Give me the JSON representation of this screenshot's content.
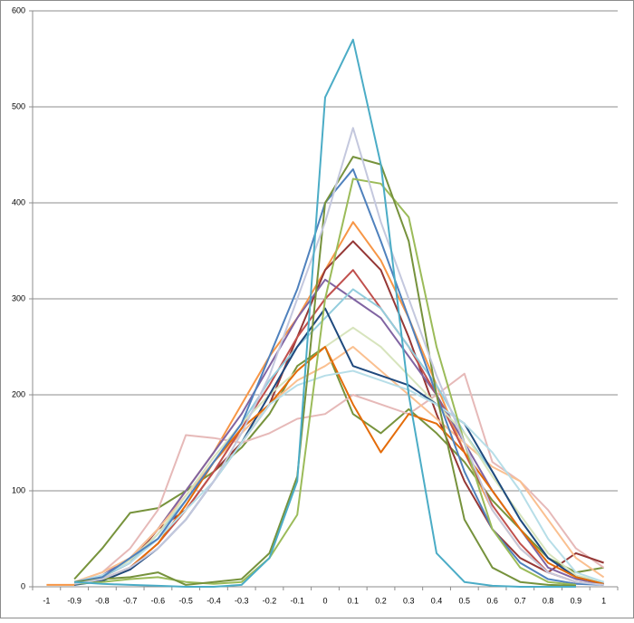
{
  "chart_data": {
    "type": "line",
    "categories": [
      "-1",
      "-0.9",
      "-0.8",
      "-0.7",
      "-0.6",
      "-0.5",
      "-0.4",
      "-0.3",
      "-0.2",
      "-0.1",
      "0",
      "0.1",
      "0.2",
      "0.3",
      "0.4",
      "0.5",
      "0.6",
      "0.7",
      "0.8",
      "0.9",
      "1"
    ],
    "ylim": [
      0,
      600
    ],
    "yticks": [
      0,
      100,
      200,
      300,
      400,
      500,
      600
    ],
    "grid": true,
    "series": [
      {
        "color": "#f79646",
        "values": [
          2,
          2,
          10,
          30,
          60,
          100,
          140,
          190,
          240,
          280,
          330,
          380,
          340,
          280,
          210,
          140,
          80,
          40,
          15,
          5,
          2
        ]
      },
      {
        "color": "#77933c",
        "values": [
          null,
          8,
          40,
          77,
          82,
          100,
          120,
          145,
          180,
          230,
          250,
          180,
          160,
          185,
          160,
          130,
          90,
          60,
          30,
          15,
          20
        ]
      },
      {
        "color": "#e6b9b8",
        "values": [
          null,
          5,
          15,
          40,
          80,
          158,
          155,
          150,
          160,
          175,
          180,
          200,
          190,
          180,
          200,
          222,
          130,
          110,
          80,
          40,
          20
        ]
      },
      {
        "color": "#953735",
        "values": [
          null,
          3,
          10,
          25,
          60,
          80,
          120,
          150,
          190,
          260,
          330,
          360,
          330,
          260,
          180,
          110,
          60,
          30,
          15,
          35,
          25
        ]
      },
      {
        "color": "#8064a2",
        "values": [
          null,
          4,
          12,
          30,
          60,
          100,
          140,
          180,
          230,
          280,
          320,
          300,
          280,
          240,
          200,
          150,
          100,
          60,
          20,
          8,
          3
        ]
      },
      {
        "color": "#fac090",
        "values": [
          null,
          5,
          15,
          30,
          60,
          95,
          130,
          160,
          190,
          215,
          230,
          250,
          225,
          200,
          175,
          150,
          125,
          110,
          70,
          30,
          10
        ]
      },
      {
        "color": "#c0504d",
        "values": [
          null,
          3,
          8,
          20,
          45,
          80,
          120,
          165,
          210,
          260,
          300,
          330,
          290,
          250,
          200,
          140,
          85,
          45,
          15,
          5,
          2
        ]
      },
      {
        "color": "#93cddd",
        "values": [
          null,
          4,
          10,
          25,
          55,
          90,
          130,
          170,
          215,
          250,
          280,
          310,
          290,
          250,
          210,
          160,
          120,
          70,
          30,
          10,
          5
        ]
      },
      {
        "color": "#d7e4bd",
        "values": [
          null,
          3,
          10,
          28,
          55,
          95,
          135,
          170,
          200,
          225,
          250,
          270,
          250,
          220,
          190,
          160,
          115,
          75,
          35,
          12,
          5
        ]
      },
      {
        "color": "#1f497d",
        "values": [
          null,
          2,
          6,
          18,
          40,
          70,
          110,
          150,
          200,
          250,
          290,
          230,
          220,
          210,
          190,
          170,
          120,
          70,
          30,
          10,
          3
        ]
      },
      {
        "color": "#e46c0a",
        "values": [
          null,
          3,
          8,
          20,
          45,
          85,
          130,
          165,
          190,
          225,
          250,
          190,
          140,
          180,
          170,
          140,
          100,
          60,
          25,
          10,
          3
        ]
      },
      {
        "color": "#b7dee8",
        "values": [
          null,
          5,
          12,
          25,
          50,
          80,
          110,
          150,
          190,
          210,
          220,
          225,
          215,
          205,
          190,
          170,
          140,
          100,
          50,
          15,
          5
        ]
      },
      {
        "color": "#4f81bd",
        "values": [
          null,
          5,
          10,
          30,
          50,
          90,
          130,
          170,
          240,
          310,
          400,
          435,
          360,
          280,
          200,
          120,
          60,
          25,
          8,
          3,
          2
        ]
      },
      {
        "color": "#9bbb59",
        "values": [
          null,
          3,
          5,
          8,
          10,
          5,
          3,
          5,
          30,
          75,
          300,
          425,
          420,
          385,
          250,
          150,
          60,
          20,
          5,
          2,
          null
        ]
      },
      {
        "color": "#76923c",
        "values": [
          null,
          5,
          8,
          10,
          15,
          2,
          5,
          8,
          35,
          115,
          400,
          448,
          440,
          360,
          200,
          70,
          20,
          5,
          2,
          1,
          null
        ]
      },
      {
        "color": "#c4c8de",
        "values": [
          null,
          3,
          8,
          20,
          40,
          70,
          110,
          160,
          220,
          300,
          380,
          478,
          380,
          300,
          220,
          150,
          80,
          40,
          15,
          5,
          2
        ]
      },
      {
        "color": "#4bacc6",
        "values": [
          null,
          5,
          3,
          2,
          1,
          0,
          0,
          2,
          30,
          110,
          510,
          570,
          440,
          200,
          35,
          5,
          1,
          0,
          0,
          0,
          null
        ]
      }
    ]
  }
}
